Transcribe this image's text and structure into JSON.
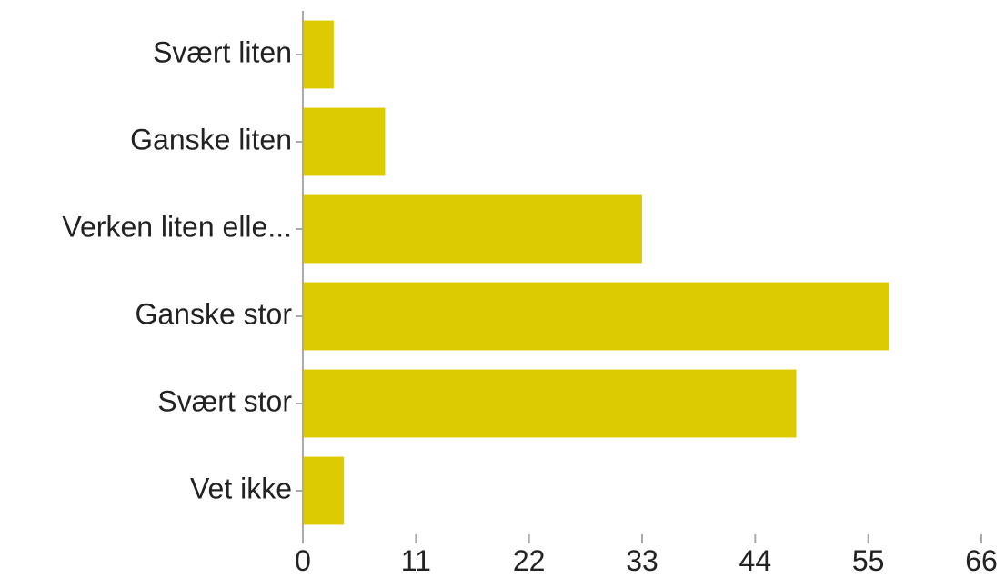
{
  "chart_data": {
    "type": "bar",
    "orientation": "horizontal",
    "categories": [
      "Svært liten",
      "Ganske liten",
      "Verken liten elle...",
      "Ganske stor",
      "Svært stor",
      "Vet ikke"
    ],
    "values": [
      3,
      8,
      33,
      57,
      48,
      4
    ],
    "x_ticks": [
      "0",
      "11",
      "22",
      "33",
      "44",
      "55",
      "66"
    ],
    "xlim": [
      0,
      66
    ],
    "title": "",
    "xlabel": "",
    "ylabel": "",
    "grid": false,
    "legend": "none",
    "bar_color": "#dccb00",
    "axis_color": "#aaaaaa"
  }
}
